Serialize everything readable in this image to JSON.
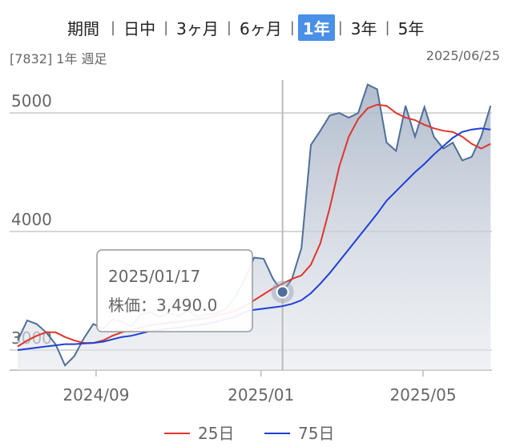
{
  "header": {
    "label": "期間",
    "tabs": [
      "日中",
      "3ヶ月",
      "6ヶ月",
      "1年",
      "3年",
      "5年"
    ],
    "active": 3,
    "caption": "[7832] 1年 週足",
    "date": "2025/06/25"
  },
  "chart_data": {
    "type": "line",
    "x": [
      "2024-07-05",
      "2024-07-12",
      "2024-07-19",
      "2024-07-26",
      "2024-08-02",
      "2024-08-09",
      "2024-08-16",
      "2024-08-23",
      "2024-08-30",
      "2024-09-06",
      "2024-09-13",
      "2024-09-20",
      "2024-09-27",
      "2024-10-04",
      "2024-10-11",
      "2024-10-18",
      "2024-10-25",
      "2024-11-01",
      "2024-11-08",
      "2024-11-15",
      "2024-11-22",
      "2024-11-29",
      "2024-12-06",
      "2024-12-13",
      "2024-12-20",
      "2024-12-27",
      "2025-01-03",
      "2025-01-10",
      "2025-01-17",
      "2025-01-24",
      "2025-01-31",
      "2025-02-07",
      "2025-02-14",
      "2025-02-21",
      "2025-02-28",
      "2025-03-07",
      "2025-03-14",
      "2025-03-21",
      "2025-03-28",
      "2025-04-04",
      "2025-04-11",
      "2025-04-18",
      "2025-04-25",
      "2025-05-02",
      "2025-05-09",
      "2025-05-16",
      "2025-05-23",
      "2025-05-30",
      "2025-06-06",
      "2025-06-13",
      "2025-06-20"
    ],
    "values": [
      3080,
      3250,
      3220,
      3150,
      3050,
      2870,
      2950,
      3100,
      3220,
      3180,
      3260,
      3240,
      3200,
      3300,
      3320,
      3280,
      3310,
      3290,
      3330,
      3280,
      3300,
      3310,
      3350,
      3450,
      3600,
      3780,
      3770,
      3600,
      3490,
      3600,
      3860,
      4730,
      4850,
      4980,
      5000,
      4960,
      5000,
      5240,
      5200,
      4750,
      4680,
      5060,
      4800,
      5050,
      4800,
      4700,
      4750,
      4600,
      4630,
      4800,
      5060
    ],
    "color": "#4f6f99",
    "series": [
      {
        "name": "25日",
        "color": "#e0352b",
        "values": [
          3030,
          3080,
          3120,
          3150,
          3150,
          3110,
          3080,
          3060,
          3060,
          3080,
          3120,
          3150,
          3170,
          3190,
          3210,
          3220,
          3230,
          3240,
          3250,
          3260,
          3270,
          3290,
          3310,
          3330,
          3370,
          3420,
          3470,
          3520,
          3560,
          3600,
          3630,
          3720,
          3900,
          4200,
          4550,
          4800,
          4950,
          5040,
          5070,
          5060,
          5000,
          4960,
          4940,
          4900,
          4870,
          4850,
          4840,
          4800,
          4740,
          4700,
          4740
        ]
      },
      {
        "name": "75日",
        "color": "#1f3fd6",
        "values": [
          3000,
          3010,
          3020,
          3030,
          3040,
          3050,
          3050,
          3055,
          3060,
          3070,
          3090,
          3110,
          3120,
          3140,
          3160,
          3170,
          3180,
          3190,
          3200,
          3210,
          3220,
          3240,
          3260,
          3280,
          3320,
          3340,
          3350,
          3360,
          3370,
          3390,
          3420,
          3480,
          3560,
          3650,
          3750,
          3850,
          3950,
          4050,
          4150,
          4260,
          4340,
          4420,
          4500,
          4570,
          4650,
          4720,
          4790,
          4840,
          4860,
          4870,
          4860
        ]
      }
    ],
    "xlim": [
      "2024-06-29",
      "2025-06-21"
    ],
    "xticks": [
      {
        "value": "2024-09-01",
        "label": "2024/09"
      },
      {
        "value": "2025-01-01",
        "label": "2025/01"
      },
      {
        "value": "2025-05-01",
        "label": "2025/05"
      }
    ],
    "ylim": [
      2831,
      5277
    ],
    "yticks": [
      3000,
      4000,
      5000
    ],
    "grid": true,
    "tooltip": {
      "title": "2025/01/17",
      "text": "株価：3,490.0"
    }
  }
}
